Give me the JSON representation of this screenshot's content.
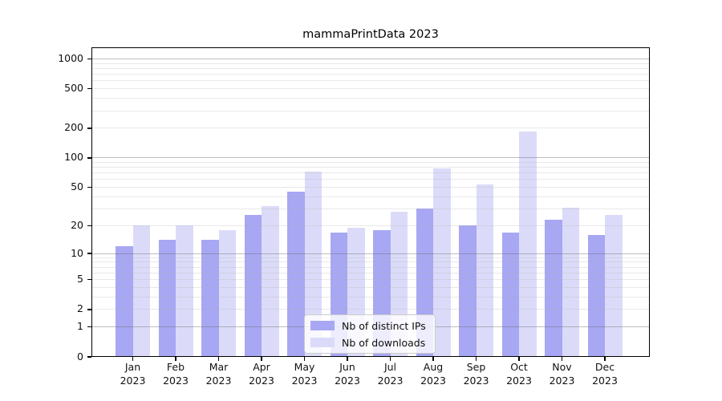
{
  "title": "mammaPrintData 2023",
  "chart_data": {
    "type": "bar",
    "title": "mammaPrintData 2023",
    "year": "2023",
    "months": [
      "Jan",
      "Feb",
      "Mar",
      "Apr",
      "May",
      "Jun",
      "Jul",
      "Aug",
      "Sep",
      "Oct",
      "Nov",
      "Dec"
    ],
    "categories": [
      "Jan 2023",
      "Feb 2023",
      "Mar 2023",
      "Apr 2023",
      "May 2023",
      "Jun 2023",
      "Jul 2023",
      "Aug 2023",
      "Sep 2023",
      "Oct 2023",
      "Nov 2023",
      "Dec 2023"
    ],
    "series": [
      {
        "name": "Nb of distinct IPs",
        "color": "#a7a7f3",
        "values": [
          12,
          14,
          14,
          26,
          45,
          17,
          18,
          30,
          20,
          17,
          23,
          16
        ]
      },
      {
        "name": "Nb of downloads",
        "color": "#dbdbf9",
        "values": [
          20,
          20,
          18,
          32,
          72,
          19,
          28,
          78,
          54,
          185,
          31,
          26
        ]
      }
    ],
    "y_ticks": [
      0,
      1,
      2,
      5,
      10,
      20,
      50,
      100,
      200,
      500,
      1000
    ],
    "y_scale": "log1p",
    "ylim": [
      0,
      1300
    ],
    "xlabel": "",
    "ylabel": "",
    "grid": "horizontal major and minor gridlines",
    "legend_position": "lower center"
  },
  "colors": {
    "background": "#ffffff",
    "spine": "#000000",
    "grid_major": "#8f8f8f",
    "grid_minor": "#e2e2e2",
    "text": "#111111",
    "legend_border": "#cccccc",
    "legend_background": "rgba(255,255,255,0.8)"
  }
}
